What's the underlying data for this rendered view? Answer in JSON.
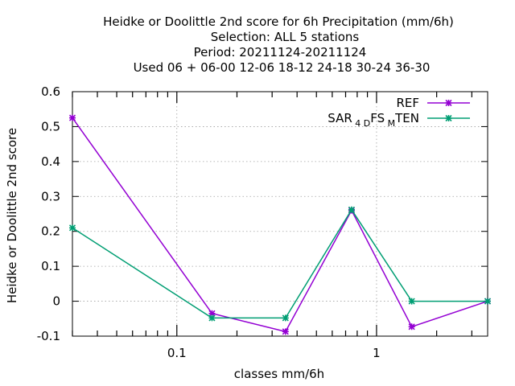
{
  "chart_data": {
    "type": "line",
    "title_lines": [
      "Heidke or Doolittle 2nd score  for 6h Precipitation (mm/6h)",
      "Selection: ALL      5 stations",
      "Period: 20211124-20211124",
      "Used  06 + 06-00 12-06 18-12 24-18 30-24 36-30"
    ],
    "xlabel": "classes mm/6h",
    "ylabel": "Heidke or Doolittle 2nd score",
    "x_scale": "log",
    "xlim": [
      0.03,
      3.6
    ],
    "ylim": [
      -0.1,
      0.6
    ],
    "x_tick_labels": [
      {
        "value": 0.1,
        "label": "0.1"
      },
      {
        "value": 1,
        "label": "1"
      }
    ],
    "y_ticks": [
      {
        "value": -0.1,
        "label": "-0.1"
      },
      {
        "value": 0,
        "label": "0"
      },
      {
        "value": 0.1,
        "label": "0.1"
      },
      {
        "value": 0.2,
        "label": "0.2"
      },
      {
        "value": 0.3,
        "label": "0.3"
      },
      {
        "value": 0.4,
        "label": "0.4"
      },
      {
        "value": 0.5,
        "label": "0.5"
      },
      {
        "value": 0.6,
        "label": "0.6"
      }
    ],
    "grid": true,
    "legend_position": "top-right",
    "x": [
      0.03,
      0.15,
      0.35,
      0.75,
      1.5,
      3.6
    ],
    "series": [
      {
        "name": "REF",
        "color": "#9400d3",
        "values": [
          0.525,
          -0.035,
          -0.087,
          0.26,
          -0.073,
          0.0
        ]
      },
      {
        "name_parts": [
          "SAR",
          "4 D",
          "FS",
          "M",
          "TEN"
        ],
        "color": "#009e73",
        "values": [
          0.21,
          -0.048,
          -0.048,
          0.262,
          0.0,
          0.0
        ]
      }
    ]
  }
}
